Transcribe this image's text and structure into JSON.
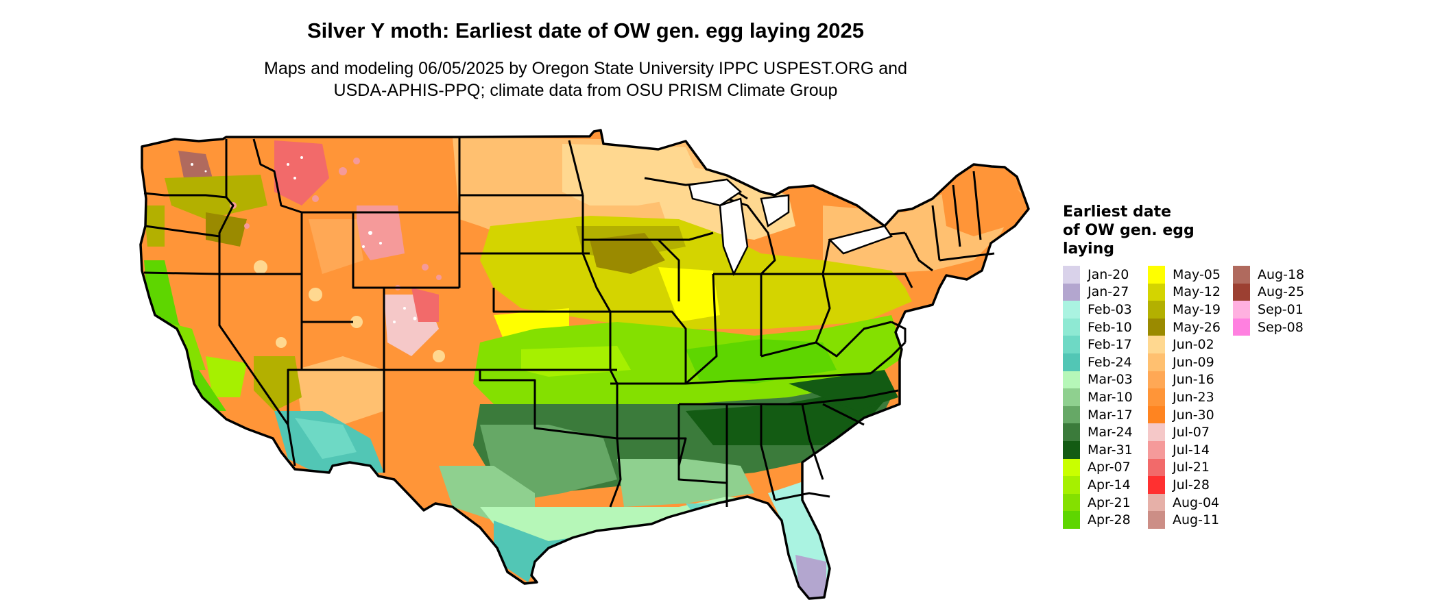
{
  "title": "Silver Y moth: Earliest date of OW gen. egg laying 2025",
  "subtitle_lines": [
    "Maps and modeling 06/05/2025 by Oregon State University IPPC USPEST.ORG and",
    "USDA-APHIS-PPQ; climate data from OSU PRISM Climate Group"
  ],
  "legend": {
    "title_lines": [
      "Earliest date",
      "of OW gen. egg",
      "laying"
    ],
    "items": [
      {
        "label": "Jan-20",
        "color": "#d9d2ea"
      },
      {
        "label": "Jan-27",
        "color": "#b3a6cf"
      },
      {
        "label": "Feb-03",
        "color": "#aaf3e1"
      },
      {
        "label": "Feb-10",
        "color": "#8ee9d3"
      },
      {
        "label": "Feb-17",
        "color": "#6ed9c5"
      },
      {
        "label": "Feb-24",
        "color": "#52c6b5"
      },
      {
        "label": "Mar-03",
        "color": "#b6f7b8"
      },
      {
        "label": "Mar-10",
        "color": "#8fd08f"
      },
      {
        "label": "Mar-17",
        "color": "#66a866"
      },
      {
        "label": "Mar-24",
        "color": "#3b7b3b"
      },
      {
        "label": "Mar-31",
        "color": "#135b13"
      },
      {
        "label": "Apr-07",
        "color": "#c9ff00"
      },
      {
        "label": "Apr-14",
        "color": "#a6f000"
      },
      {
        "label": "Apr-21",
        "color": "#84e000"
      },
      {
        "label": "Apr-28",
        "color": "#5ed600"
      },
      {
        "label": "May-05",
        "color": "#ffff00"
      },
      {
        "label": "May-12",
        "color": "#d4d400"
      },
      {
        "label": "May-19",
        "color": "#b3b000"
      },
      {
        "label": "May-26",
        "color": "#9a8a00"
      },
      {
        "label": "Jun-02",
        "color": "#ffd890"
      },
      {
        "label": "Jun-09",
        "color": "#ffc070"
      },
      {
        "label": "Jun-16",
        "color": "#ffa855"
      },
      {
        "label": "Jun-23",
        "color": "#ff9538"
      },
      {
        "label": "Jun-30",
        "color": "#ff8420"
      },
      {
        "label": "Jul-07",
        "color": "#f5c8c8"
      },
      {
        "label": "Jul-14",
        "color": "#f59a9a"
      },
      {
        "label": "Jul-21",
        "color": "#f26a6a"
      },
      {
        "label": "Jul-28",
        "color": "#ff3030"
      },
      {
        "label": "Aug-04",
        "color": "#e6b0a8"
      },
      {
        "label": "Aug-11",
        "color": "#cc8e86"
      },
      {
        "label": "Aug-18",
        "color": "#b06a5e"
      },
      {
        "label": "Aug-25",
        "color": "#9c4032"
      },
      {
        "label": "Sep-01",
        "color": "#ffb0e0"
      },
      {
        "label": "Sep-08",
        "color": "#ff80e0"
      }
    ],
    "columns": 3,
    "rows_per_column": 15
  },
  "map": {
    "region": "contiguous United States with state boundaries",
    "border_color": "#000000"
  }
}
